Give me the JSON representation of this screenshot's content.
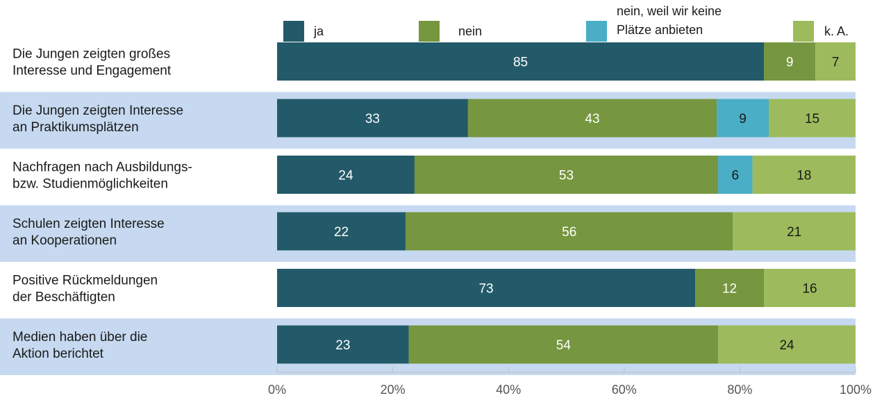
{
  "chart_data": {
    "type": "bar",
    "orientation": "horizontal",
    "stacked": true,
    "categories": [
      [
        "Die Jungen zeigten großes",
        "Interesse und Engagement"
      ],
      [
        "Die Jungen zeigten Interesse",
        "an Praktikumsplätzen"
      ],
      [
        "Nachfragen nach Ausbildungs-",
        "bzw. Studienmöglichkeiten"
      ],
      [
        "Schulen zeigten Interesse",
        "an Kooperationen"
      ],
      [
        "Positive Rückmeldungen",
        "der Beschäftigten"
      ],
      [
        "Medien haben über die",
        "Aktion berichtet"
      ]
    ],
    "series": [
      {
        "name": "ja",
        "color": "#235a69",
        "label_color": "#ffffff",
        "values": [
          85,
          33,
          24,
          22,
          73,
          23
        ]
      },
      {
        "name": "nein",
        "color": "#76963f",
        "label_color": "#ffffff",
        "values": [
          9,
          43,
          53,
          56,
          12,
          54
        ]
      },
      {
        "name": [
          "nein, weil wir keine",
          "Plätze anbieten"
        ],
        "color": "#4aaec7",
        "label_color": "#1a1a1a",
        "values": [
          0,
          9,
          6,
          0,
          0,
          0
        ]
      },
      {
        "name": "k. A.",
        "color": "#9dbb5c",
        "label_color": "#1a1a1a",
        "values": [
          7,
          15,
          18,
          21,
          16,
          24
        ]
      }
    ],
    "x_ticks": [
      "0%",
      "20%",
      "40%",
      "60%",
      "80%",
      "100%"
    ],
    "xlim": [
      0,
      100
    ],
    "row_band_color": "#c6d9f0",
    "legend_position": "top"
  }
}
